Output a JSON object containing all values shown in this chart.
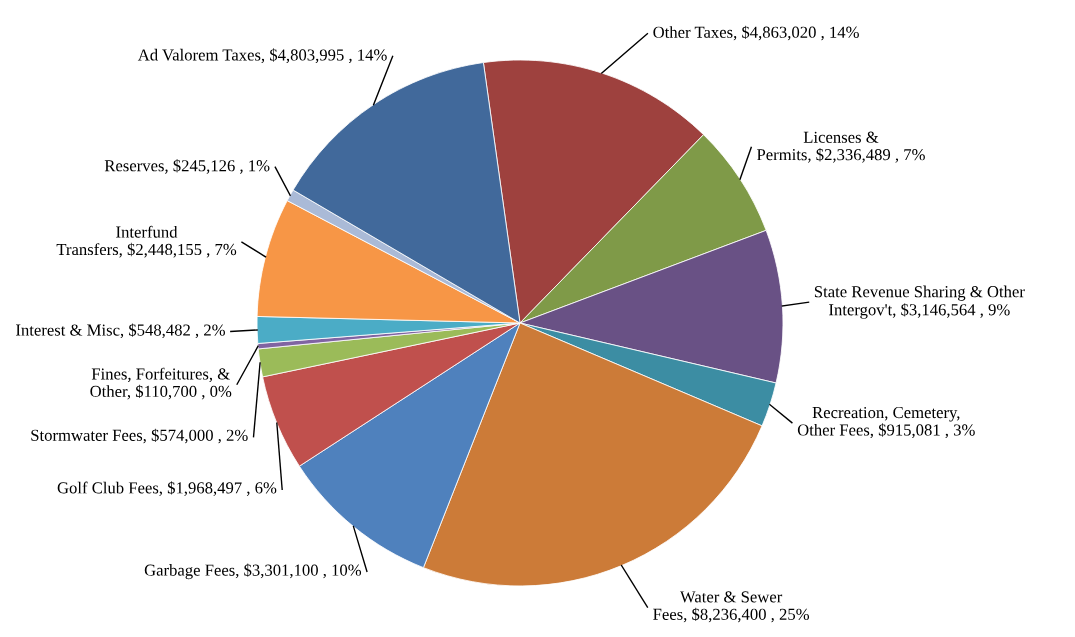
{
  "chart_data": {
    "type": "pie",
    "categories": [
      "Other Taxes",
      "Licenses & Permits",
      "State Revenue Sharing & Other Intergov't",
      "Recreation, Cemetery, Other Fees",
      "Water & Sewer Fees",
      "Garbage Fees",
      "Golf Club Fees",
      "Stormwater Fees",
      "Fines, Forfeitures, & Other",
      "Interest & Misc",
      "Interfund Transfers",
      "Reserves",
      "Ad Valorem Taxes"
    ],
    "values": [
      4863020,
      2336489,
      3146564,
      915081,
      8236400,
      3301100,
      1968497,
      574000,
      110700,
      548482,
      2448155,
      245126,
      4803995
    ],
    "value_labels": [
      "$4,863,020 , 14%",
      "$2,336,489 , 7%",
      "$3,146,564 , 9%",
      "$915,081 , 3%",
      "$8,236,400 , 25%",
      "$3,301,100 , 10%",
      "$1,968,497 , 6%",
      "$574,000 , 2%",
      "$110,700 , 0%",
      "$548,482 , 2%",
      "$2,448,155 , 7%",
      "$245,126 , 1%",
      "$4,803,995 , 14%"
    ],
    "colors": [
      "#9e413e",
      "#7f9a48",
      "#695185",
      "#3c8da3",
      "#cc7b38",
      "#4f81bd",
      "#c0504d",
      "#9bbb59",
      "#8064a2",
      "#4bacc6",
      "#f79646",
      "#aabad7",
      "#41699b"
    ],
    "legend": false
  }
}
